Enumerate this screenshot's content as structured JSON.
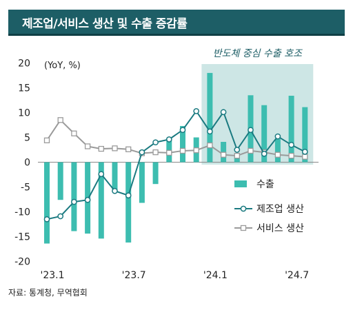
{
  "title": "제조업/서비스 생산 및 수출 증감률",
  "source": "자료: 통계청, 무역협회",
  "colors": {
    "title_bg": "#1d5e66",
    "export_bar": "#3dbdb0",
    "manufacturing": "#1a7a80",
    "services": "#9a9a9a",
    "highlight": "#cde6e5"
  },
  "chart_data": {
    "type": "bar",
    "unit_label": "(YoY, %)",
    "ylim": [
      -20,
      20
    ],
    "yticks": [
      20,
      15,
      10,
      5,
      0,
      -5,
      -10,
      -15,
      -20
    ],
    "x_tick_labels": [
      "'23.1",
      "'23.7",
      "'24.1",
      "'24.7"
    ],
    "x_tick_index": [
      0,
      6,
      12,
      18
    ],
    "highlight": {
      "label": "반도체 중심 수출 호조",
      "from_index": 12,
      "to_index": 19
    },
    "legend_position": "center-right",
    "series": [
      {
        "name": "수출",
        "type": "bar",
        "values": [
          -16.4,
          -7.6,
          -13.9,
          -14.4,
          -15.4,
          -6.0,
          -16.2,
          -8.2,
          -4.4,
          4.9,
          7.3,
          5.0,
          18.0,
          4.1,
          1.2,
          13.5,
          11.5,
          4.7,
          13.4,
          11.1
        ]
      },
      {
        "name": "제조업 생산",
        "type": "line",
        "marker": "circle",
        "values": [
          -11.5,
          -10.9,
          -8.0,
          -7.6,
          -2.4,
          -5.8,
          -6.7,
          2.0,
          4.0,
          4.6,
          6.5,
          10.3,
          6.2,
          10.1,
          2.5,
          6.5,
          1.7,
          5.2,
          3.5,
          2.1
        ]
      },
      {
        "name": "서비스 생산",
        "type": "line",
        "marker": "square",
        "values": [
          4.4,
          8.5,
          5.8,
          3.2,
          2.7,
          2.8,
          2.6,
          1.8,
          2.0,
          1.9,
          2.3,
          2.4,
          3.4,
          1.5,
          1.3,
          2.3,
          2.0,
          1.5,
          1.3,
          1.1
        ]
      }
    ]
  }
}
